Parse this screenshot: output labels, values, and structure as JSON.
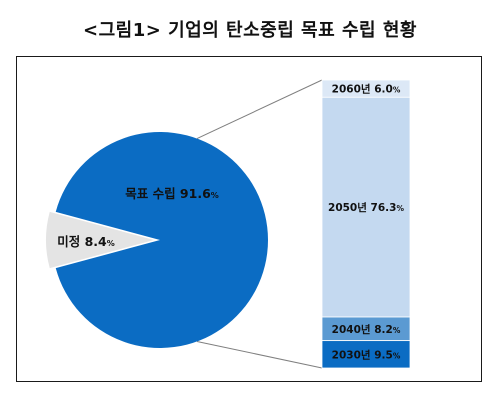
{
  "title": "<그림1> 기업의 탄소중립 목표 수립 현황",
  "colors": {
    "pie_main": "#0b6cc3",
    "pie_other": "#e4e4e4",
    "bar_2060": "#dce8f6",
    "bar_2050": "#c4d9f0",
    "bar_2040": "#5b9ad2",
    "bar_2030": "#0b6cc3",
    "connector": "#7f7f7f"
  },
  "chart_data": {
    "type": "bar-of-pie",
    "title": "<그림1> 기업의 탄소중립 목표 수립 현황",
    "pie": [
      {
        "label": "목표 수립",
        "value": 91.6,
        "label_value": "91.6",
        "unit": "%"
      },
      {
        "label": "미정",
        "value": 8.4,
        "label_value": "8.4",
        "unit": "%"
      }
    ],
    "bar": [
      {
        "label": "2060년",
        "value": 6.0,
        "label_value": "6.0",
        "unit": "%"
      },
      {
        "label": "2050년",
        "value": 76.3,
        "label_value": "76.3",
        "unit": "%"
      },
      {
        "label": "2040년",
        "value": 8.2,
        "label_value": "8.2",
        "unit": "%"
      },
      {
        "label": "2030년",
        "value": 9.5,
        "label_value": "9.5",
        "unit": "%"
      }
    ]
  }
}
